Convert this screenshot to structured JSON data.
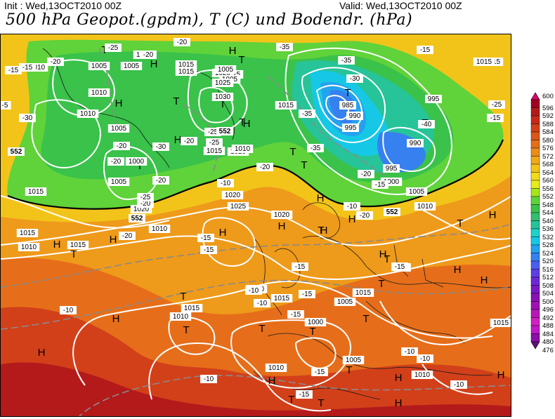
{
  "header": {
    "init": "Init : Wed,13OCT2010 00Z",
    "valid": "Valid: Wed,13OCT2010 00Z",
    "title": "500 hPa Geopot.(gpdm), T (C) und Bodendr. (hPa)"
  },
  "legend": {
    "values": [
      "600",
      "596",
      "592",
      "588",
      "584",
      "580",
      "576",
      "572",
      "568",
      "564",
      "560",
      "556",
      "552",
      "548",
      "544",
      "540",
      "536",
      "532",
      "528",
      "524",
      "520",
      "516",
      "512",
      "508",
      "504",
      "500",
      "496",
      "492",
      "488",
      "484",
      "480",
      "476"
    ],
    "colors": [
      "#e0006e",
      "#a00020",
      "#b41a1a",
      "#c8281a",
      "#d2401a",
      "#dc561a",
      "#e66e1a",
      "#ec8c1a",
      "#f0a81a",
      "#f2c41a",
      "#f2dc1a",
      "#e6ec1a",
      "#a6e61a",
      "#60d23a",
      "#3ac24a",
      "#32be6e",
      "#26c498",
      "#1ed2c8",
      "#16c8e6",
      "#24a2f0",
      "#3680f0",
      "#4a5ef0",
      "#5c40e6",
      "#6c28d8",
      "#7a18c8",
      "#8a10b8",
      "#a010b4",
      "#b818b8",
      "#d020c0",
      "#c018c8",
      "#8a10a8",
      "#60107a"
    ]
  },
  "map_labels": {
    "pressure_highs": [
      "H",
      "H",
      "H",
      "H",
      "H",
      "H",
      "H",
      "H",
      "H",
      "H",
      "H",
      "H",
      "H",
      "H",
      "H",
      "H",
      "H",
      "H",
      "H",
      "H",
      "H",
      "H"
    ],
    "pressure_lows": [
      "T",
      "T",
      "T",
      "T",
      "T",
      "T",
      "T",
      "T",
      "T",
      "T",
      "T",
      "T",
      "T",
      "T",
      "T",
      "T",
      "T",
      "T",
      "T",
      "T",
      "T",
      "T",
      "T"
    ],
    "isobars": [
      "1005",
      "1005",
      "1000",
      "1025",
      "1020",
      "1005",
      "1010",
      "1010",
      "1005",
      "1010",
      "1015",
      "1005",
      "1000",
      "1005",
      "1015",
      "1015",
      "1015",
      "1020",
      "1030",
      "1025",
      "1020",
      "1015",
      "995",
      "985",
      "990",
      "995",
      "995",
      "990",
      "1000",
      "1005",
      "1010",
      "1015",
      "1010",
      "1020",
      "1025",
      "1010",
      "1015",
      "1015",
      "1010",
      "1015",
      "1000",
      "1005",
      "1010",
      "1005",
      "1015",
      "1010",
      "1015",
      "1020",
      "1010",
      "1015",
      "1015",
      "1010"
    ],
    "temperatures": [
      "-25",
      "-20",
      "-20",
      "-15",
      "-20",
      "-30",
      "-30",
      "-20",
      "-25",
      "-25",
      "-20",
      "-20",
      "-25",
      "-15",
      "-35",
      "-35",
      "-35",
      "-30",
      "-40",
      "-35",
      "-20",
      "-15",
      "-25",
      "-20",
      "-15",
      "-15",
      "-20",
      "-15",
      "-15",
      "-10",
      "-15",
      "-10",
      "-10",
      "-10",
      "-10",
      "-10",
      "-10",
      "-15",
      "-15",
      "-10",
      "-10",
      "-15",
      "-15",
      "-20",
      "-20",
      "-20",
      "-15",
      "-10",
      "-5",
      "-15"
    ],
    "geopot_552": [
      "552",
      "552",
      "552",
      "552"
    ]
  }
}
